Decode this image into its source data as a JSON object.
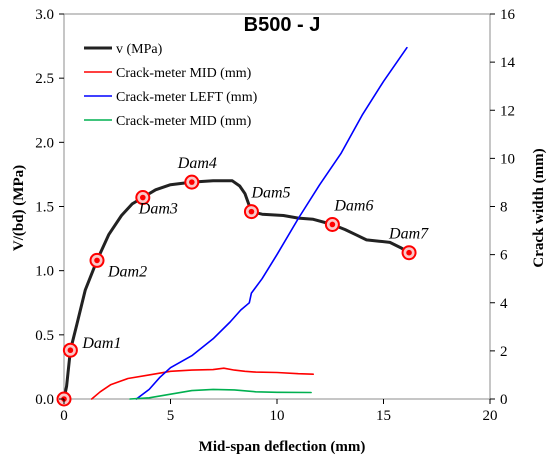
{
  "chart_data": {
    "type": "line",
    "title": "B500 - J",
    "xlabel": "Mid-span deflection (mm)",
    "ylabel": "V/(bd) (MPa)",
    "y2label": "Crack width (mm)",
    "xlim": [
      0,
      20
    ],
    "ylim": [
      0,
      3.0
    ],
    "y2lim": [
      0,
      16
    ],
    "xticks": [
      "0",
      "5",
      "10",
      "15",
      "20"
    ],
    "yticks": [
      "0.0",
      "0.5",
      "1.0",
      "1.5",
      "2.0",
      "2.5",
      "3.0"
    ],
    "y2ticks": [
      "0",
      "2",
      "4",
      "6",
      "8",
      "10",
      "12",
      "14",
      "16"
    ],
    "legend_position": "top-left",
    "series": [
      {
        "name": "v (MPa)",
        "color": "#222222",
        "axis": "left",
        "points": [
          [
            0.0,
            0.0
          ],
          [
            0.12,
            0.1
          ],
          [
            0.3,
            0.38
          ],
          [
            0.6,
            0.58
          ],
          [
            1.0,
            0.85
          ],
          [
            1.55,
            1.08
          ],
          [
            2.1,
            1.28
          ],
          [
            2.7,
            1.43
          ],
          [
            3.2,
            1.52
          ],
          [
            3.7,
            1.57
          ],
          [
            4.3,
            1.63
          ],
          [
            5.0,
            1.67
          ],
          [
            6.0,
            1.69
          ],
          [
            7.0,
            1.7
          ],
          [
            7.9,
            1.7
          ],
          [
            8.25,
            1.66
          ],
          [
            8.5,
            1.6
          ],
          [
            8.8,
            1.46
          ],
          [
            9.3,
            1.44
          ],
          [
            10.3,
            1.43
          ],
          [
            11.0,
            1.41
          ],
          [
            11.7,
            1.4
          ],
          [
            12.6,
            1.36
          ],
          [
            13.2,
            1.32
          ],
          [
            13.7,
            1.28
          ],
          [
            14.2,
            1.24
          ],
          [
            14.8,
            1.23
          ],
          [
            15.3,
            1.22
          ],
          [
            15.8,
            1.18
          ],
          [
            16.2,
            1.14
          ]
        ]
      },
      {
        "name": "Crack-meter MID (mm)",
        "color": "#ff0000",
        "axis": "right",
        "points": [
          [
            1.3,
            0.0
          ],
          [
            1.7,
            0.3
          ],
          [
            2.2,
            0.6
          ],
          [
            3.0,
            0.85
          ],
          [
            4.0,
            1.0
          ],
          [
            5.0,
            1.15
          ],
          [
            6.0,
            1.2
          ],
          [
            7.0,
            1.22
          ],
          [
            7.5,
            1.28
          ],
          [
            8.0,
            1.2
          ],
          [
            8.5,
            1.15
          ],
          [
            9.0,
            1.12
          ],
          [
            10.0,
            1.1
          ],
          [
            11.0,
            1.05
          ],
          [
            11.7,
            1.03
          ]
        ]
      },
      {
        "name": "Crack-meter LEFT (mm)",
        "color": "#0000ff",
        "axis": "right",
        "points": [
          [
            3.4,
            0.0
          ],
          [
            4.0,
            0.4
          ],
          [
            4.5,
            0.9
          ],
          [
            5.0,
            1.3
          ],
          [
            6.0,
            1.8
          ],
          [
            7.0,
            2.5
          ],
          [
            7.8,
            3.2
          ],
          [
            8.3,
            3.7
          ],
          [
            8.7,
            4.0
          ],
          [
            8.8,
            4.4
          ],
          [
            9.3,
            5.0
          ],
          [
            10.0,
            6.0
          ],
          [
            11.0,
            7.5
          ],
          [
            12.0,
            8.9
          ],
          [
            13.0,
            10.2
          ],
          [
            14.0,
            11.8
          ],
          [
            15.0,
            13.2
          ],
          [
            16.1,
            14.6
          ]
        ]
      },
      {
        "name": "Crack-meter MID (mm)",
        "color": "#00b050",
        "axis": "right",
        "points": [
          [
            3.1,
            0.0
          ],
          [
            4.0,
            0.05
          ],
          [
            5.0,
            0.2
          ],
          [
            6.0,
            0.35
          ],
          [
            7.0,
            0.4
          ],
          [
            8.0,
            0.38
          ],
          [
            9.0,
            0.3
          ],
          [
            10.0,
            0.28
          ],
          [
            11.6,
            0.27
          ]
        ]
      }
    ],
    "damage_markers": [
      {
        "label": "",
        "x": 0.0,
        "y": 0.0
      },
      {
        "label": "Dam1",
        "x": 0.3,
        "y": 0.38
      },
      {
        "label": "Dam2",
        "x": 1.55,
        "y": 1.08
      },
      {
        "label": "Dam3",
        "x": 3.7,
        "y": 1.57
      },
      {
        "label": "Dam4",
        "x": 6.0,
        "y": 1.69
      },
      {
        "label": "Dam5",
        "x": 8.8,
        "y": 1.46
      },
      {
        "label": "Dam6",
        "x": 12.6,
        "y": 1.36
      },
      {
        "label": "Dam7",
        "x": 16.2,
        "y": 1.14
      }
    ]
  }
}
